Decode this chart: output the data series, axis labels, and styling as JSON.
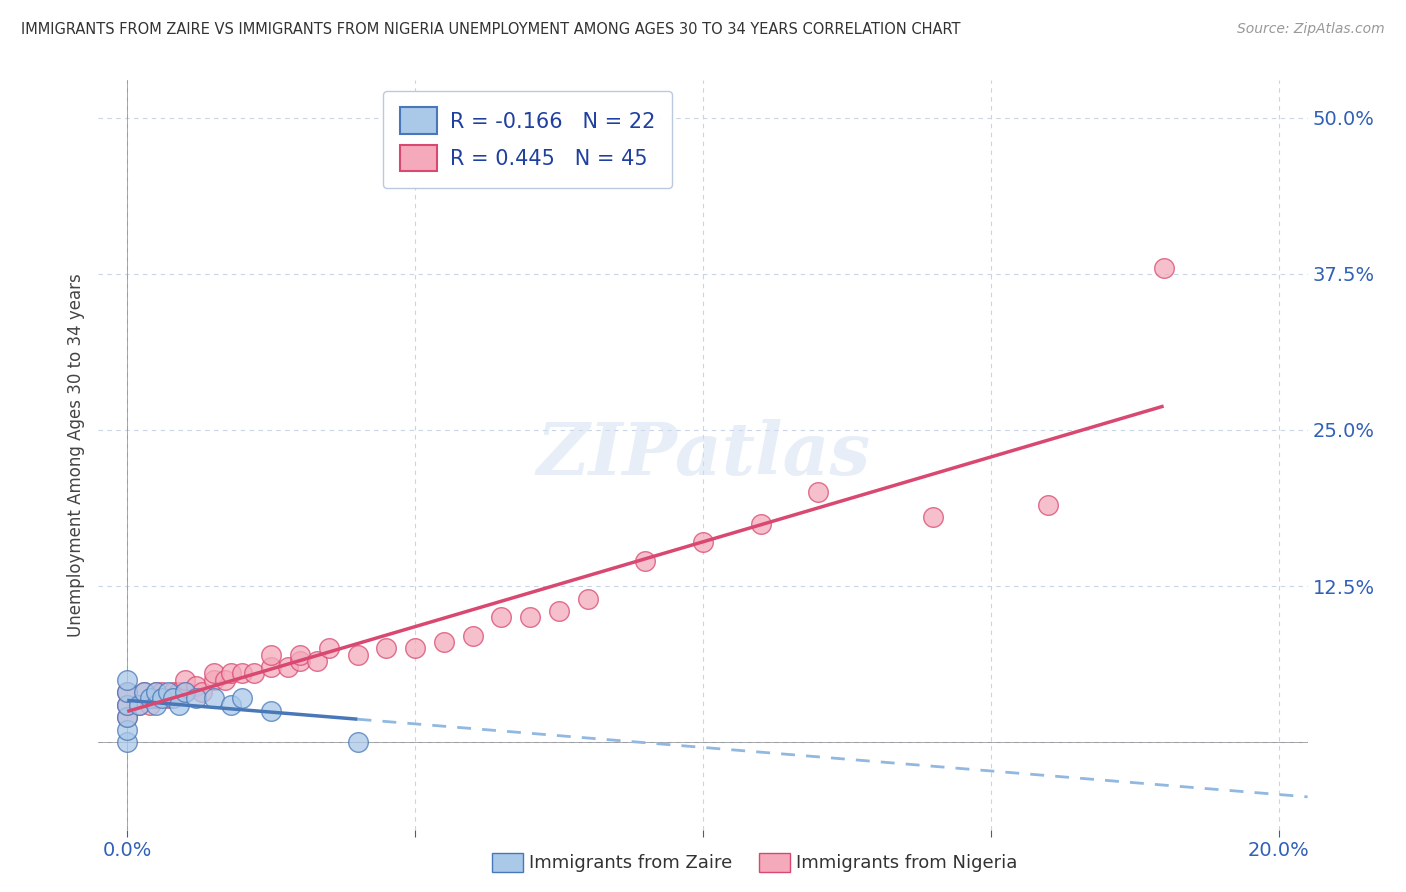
{
  "title": "IMMIGRANTS FROM ZAIRE VS IMMIGRANTS FROM NIGERIA UNEMPLOYMENT AMONG AGES 30 TO 34 YEARS CORRELATION CHART",
  "source": "Source: ZipAtlas.com",
  "ylabel": "Unemployment Among Ages 30 to 34 years",
  "legend_label1": "Immigrants from Zaire",
  "legend_label2": "Immigrants from Nigeria",
  "R1": -0.166,
  "N1": 22,
  "R2": 0.445,
  "N2": 45,
  "color_zaire": "#aac8e8",
  "color_nigeria": "#f4aabb",
  "trendline_zaire": "#4878b8",
  "trendline_nigeria": "#d84870",
  "trendline_ext_zaire": "#90b8e0",
  "trendline_ext_nigeria": "#f0b0c0",
  "xlim": [
    -0.005,
    0.205
  ],
  "ylim": [
    -0.07,
    0.53
  ],
  "xticks": [
    0.0,
    0.05,
    0.1,
    0.15,
    0.2
  ],
  "xticklabels": [
    "0.0%",
    "",
    "",
    "",
    "20.0%"
  ],
  "yticks": [
    0.0,
    0.125,
    0.25,
    0.375,
    0.5
  ],
  "yticklabels": [
    "",
    "12.5%",
    "25.0%",
    "37.5%",
    "50.0%"
  ],
  "background_color": "#ffffff",
  "grid_color": "#c8d4e8",
  "zaire_x": [
    0.0,
    0.0,
    0.0,
    0.0,
    0.0,
    0.0,
    0.002,
    0.003,
    0.004,
    0.005,
    0.005,
    0.006,
    0.007,
    0.008,
    0.009,
    0.01,
    0.012,
    0.015,
    0.018,
    0.02,
    0.025,
    0.04
  ],
  "zaire_y": [
    0.0,
    0.01,
    0.02,
    0.03,
    0.04,
    0.05,
    0.03,
    0.04,
    0.035,
    0.03,
    0.04,
    0.035,
    0.04,
    0.035,
    0.03,
    0.04,
    0.035,
    0.035,
    0.03,
    0.035,
    0.025,
    0.0
  ],
  "nigeria_x": [
    0.0,
    0.0,
    0.0,
    0.002,
    0.003,
    0.004,
    0.005,
    0.005,
    0.006,
    0.007,
    0.008,
    0.009,
    0.01,
    0.01,
    0.012,
    0.013,
    0.015,
    0.015,
    0.017,
    0.018,
    0.02,
    0.022,
    0.025,
    0.025,
    0.028,
    0.03,
    0.03,
    0.033,
    0.035,
    0.04,
    0.045,
    0.05,
    0.055,
    0.06,
    0.065,
    0.07,
    0.075,
    0.08,
    0.09,
    0.1,
    0.11,
    0.12,
    0.14,
    0.16,
    0.18
  ],
  "nigeria_y": [
    0.02,
    0.03,
    0.04,
    0.03,
    0.04,
    0.03,
    0.035,
    0.04,
    0.04,
    0.035,
    0.04,
    0.04,
    0.04,
    0.05,
    0.045,
    0.04,
    0.05,
    0.055,
    0.05,
    0.055,
    0.055,
    0.055,
    0.06,
    0.07,
    0.06,
    0.065,
    0.07,
    0.065,
    0.075,
    0.07,
    0.075,
    0.075,
    0.08,
    0.085,
    0.1,
    0.1,
    0.105,
    0.115,
    0.145,
    0.16,
    0.175,
    0.2,
    0.18,
    0.19,
    0.38
  ]
}
